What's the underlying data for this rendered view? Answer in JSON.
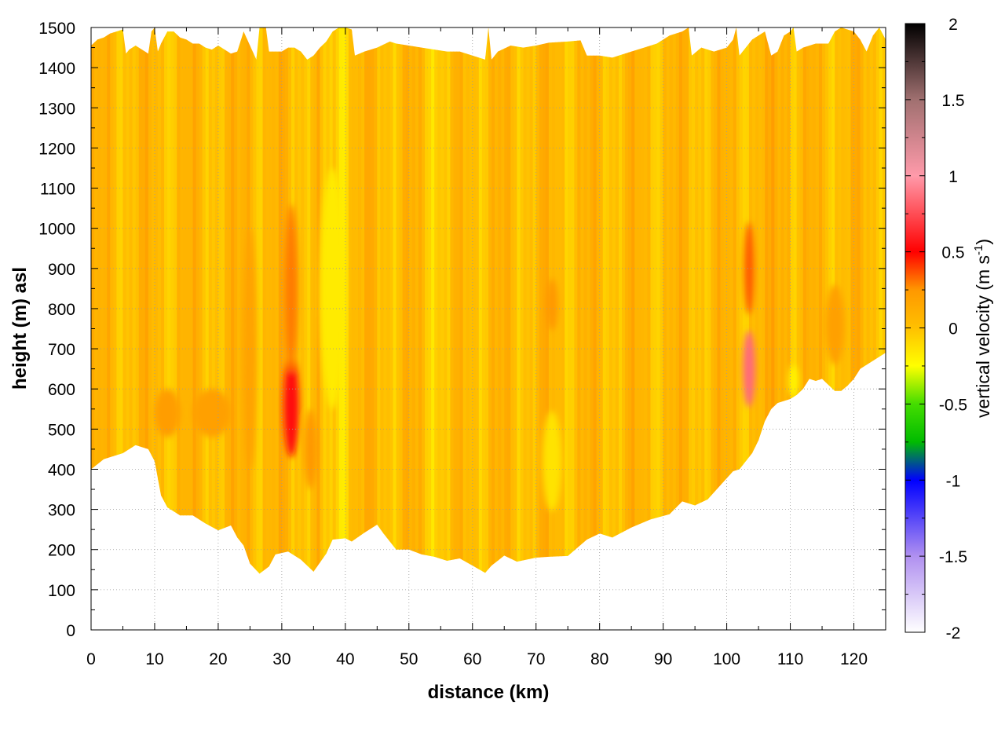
{
  "chart_data": {
    "type": "heatmap",
    "xlabel": "distance (km)",
    "ylabel": "height (m) asl",
    "xlim": [
      0,
      125
    ],
    "ylim": [
      0,
      1500
    ],
    "xticks": [
      0,
      10,
      20,
      30,
      40,
      50,
      60,
      70,
      80,
      90,
      100,
      110,
      120
    ],
    "yticks": [
      0,
      100,
      200,
      300,
      400,
      500,
      600,
      700,
      800,
      900,
      1000,
      1100,
      1200,
      1300,
      1400,
      1500
    ],
    "xtick_labels": [
      "0",
      "10",
      "20",
      "30",
      "40",
      "50",
      "60",
      "70",
      "80",
      "90",
      "100",
      "110",
      "120"
    ],
    "ytick_labels": [
      "0",
      "100",
      "200",
      "300",
      "400",
      "500",
      "600",
      "700",
      "800",
      "900",
      "1000",
      "1100",
      "1200",
      "1300",
      "1400",
      "1500"
    ],
    "grid": true,
    "colorbar": {
      "label_main": "vertical velocity (m s",
      "label_sup": "-1",
      "label_close": ")",
      "range": [
        -2,
        2
      ],
      "ticks": [
        2,
        1.5,
        1,
        0.5,
        0,
        -0.5,
        -1,
        -1.5,
        -2
      ],
      "tick_labels": [
        "2",
        "1.5",
        "1",
        "0.5",
        "0",
        "-0.5",
        "-1",
        "-1.5",
        "-2"
      ],
      "colormap": [
        [
          -2,
          "#ffffff"
        ],
        [
          -1.5,
          "#b090f0"
        ],
        [
          -1,
          "#0000ff"
        ],
        [
          -0.75,
          "#00bb00"
        ],
        [
          -0.5,
          "#44dd00"
        ],
        [
          -0.25,
          "#ffff00"
        ],
        [
          0,
          "#ffc000"
        ],
        [
          0.25,
          "#ff9800"
        ],
        [
          0.5,
          "#ff0000"
        ],
        [
          1,
          "#ff9aaa"
        ],
        [
          1.5,
          "#a07070"
        ],
        [
          2,
          "#000000"
        ]
      ]
    },
    "data_bottom_boundary": [
      [
        0,
        400
      ],
      [
        2,
        425
      ],
      [
        5,
        440
      ],
      [
        7,
        460
      ],
      [
        9,
        450
      ],
      [
        10,
        420
      ],
      [
        11,
        335
      ],
      [
        12,
        305
      ],
      [
        14,
        285
      ],
      [
        16,
        285
      ],
      [
        18,
        265
      ],
      [
        20,
        248
      ],
      [
        22,
        260
      ],
      [
        23,
        230
      ],
      [
        24,
        210
      ],
      [
        25,
        165
      ],
      [
        26.5,
        140
      ],
      [
        28,
        158
      ],
      [
        29,
        188
      ],
      [
        31,
        195
      ],
      [
        33,
        175
      ],
      [
        35,
        145
      ],
      [
        37,
        190
      ],
      [
        38,
        225
      ],
      [
        40,
        228
      ],
      [
        41,
        220
      ],
      [
        43,
        242
      ],
      [
        45,
        262
      ],
      [
        46,
        240
      ],
      [
        48,
        200
      ],
      [
        50,
        200
      ],
      [
        52,
        188
      ],
      [
        54,
        182
      ],
      [
        56,
        172
      ],
      [
        58,
        178
      ],
      [
        60,
        160
      ],
      [
        62,
        142
      ],
      [
        63,
        160
      ],
      [
        65,
        185
      ],
      [
        67,
        170
      ],
      [
        70,
        180
      ],
      [
        72,
        182
      ],
      [
        75,
        184
      ],
      [
        78,
        225
      ],
      [
        80,
        240
      ],
      [
        82,
        230
      ],
      [
        85,
        255
      ],
      [
        88,
        275
      ],
      [
        91,
        288
      ],
      [
        93,
        320
      ],
      [
        95,
        310
      ],
      [
        97,
        325
      ],
      [
        99,
        360
      ],
      [
        101,
        395
      ],
      [
        102,
        400
      ],
      [
        104,
        440
      ],
      [
        105,
        472
      ],
      [
        106,
        520
      ],
      [
        107,
        550
      ],
      [
        108,
        565
      ],
      [
        110,
        575
      ],
      [
        111,
        585
      ],
      [
        112,
        600
      ],
      [
        113,
        625
      ],
      [
        114,
        620
      ],
      [
        115,
        625
      ],
      [
        116,
        610
      ],
      [
        117,
        595
      ],
      [
        118,
        595
      ],
      [
        119,
        608
      ],
      [
        120,
        625
      ],
      [
        121,
        650
      ],
      [
        123,
        670
      ],
      [
        125,
        690
      ]
    ],
    "data_top_boundary": [
      [
        0,
        1455
      ],
      [
        1,
        1470
      ],
      [
        2,
        1475
      ],
      [
        3,
        1485
      ],
      [
        4,
        1490
      ],
      [
        5,
        1495
      ],
      [
        5.5,
        1435
      ],
      [
        6,
        1445
      ],
      [
        7,
        1455
      ],
      [
        8,
        1445
      ],
      [
        9,
        1435
      ],
      [
        9.5,
        1490
      ],
      [
        10,
        1500
      ],
      [
        10.5,
        1440
      ],
      [
        11,
        1460
      ],
      [
        12,
        1490
      ],
      [
        13,
        1490
      ],
      [
        14,
        1475
      ],
      [
        15,
        1470
      ],
      [
        16,
        1460
      ],
      [
        17,
        1460
      ],
      [
        18,
        1450
      ],
      [
        19,
        1445
      ],
      [
        20,
        1455
      ],
      [
        21,
        1445
      ],
      [
        22,
        1435
      ],
      [
        23,
        1440
      ],
      [
        24,
        1490
      ],
      [
        25,
        1455
      ],
      [
        26,
        1420
      ],
      [
        26.5,
        1500
      ],
      [
        27.5,
        1500
      ],
      [
        28,
        1440
      ],
      [
        29,
        1440
      ],
      [
        30,
        1440
      ],
      [
        31,
        1450
      ],
      [
        32,
        1450
      ],
      [
        33,
        1440
      ],
      [
        34,
        1420
      ],
      [
        35,
        1430
      ],
      [
        36,
        1450
      ],
      [
        37,
        1465
      ],
      [
        38,
        1490
      ],
      [
        39,
        1500
      ],
      [
        40,
        1500
      ],
      [
        41,
        1495
      ],
      [
        41.5,
        1430
      ],
      [
        43,
        1440
      ],
      [
        45,
        1450
      ],
      [
        47,
        1465
      ],
      [
        48,
        1460
      ],
      [
        50,
        1455
      ],
      [
        52,
        1450
      ],
      [
        54,
        1445
      ],
      [
        56,
        1440
      ],
      [
        58,
        1440
      ],
      [
        60,
        1430
      ],
      [
        62,
        1420
      ],
      [
        62.5,
        1500
      ],
      [
        63,
        1420
      ],
      [
        64,
        1440
      ],
      [
        66,
        1455
      ],
      [
        68,
        1450
      ],
      [
        70,
        1455
      ],
      [
        72,
        1462
      ],
      [
        75,
        1465
      ],
      [
        77,
        1468
      ],
      [
        78,
        1430
      ],
      [
        80,
        1430
      ],
      [
        82,
        1425
      ],
      [
        85,
        1440
      ],
      [
        87,
        1450
      ],
      [
        89,
        1460
      ],
      [
        91,
        1480
      ],
      [
        93,
        1490
      ],
      [
        94,
        1500
      ],
      [
        94.5,
        1430
      ],
      [
        96,
        1450
      ],
      [
        98,
        1440
      ],
      [
        100,
        1450
      ],
      [
        101,
        1470
      ],
      [
        101.5,
        1500
      ],
      [
        102,
        1430
      ],
      [
        104,
        1470
      ],
      [
        106,
        1490
      ],
      [
        107,
        1430
      ],
      [
        108,
        1440
      ],
      [
        109,
        1480
      ],
      [
        110,
        1490
      ],
      [
        110.5,
        1500
      ],
      [
        111,
        1440
      ],
      [
        112,
        1450
      ],
      [
        114,
        1460
      ],
      [
        116,
        1460
      ],
      [
        117,
        1490
      ],
      [
        118,
        1500
      ],
      [
        120,
        1490
      ],
      [
        121,
        1470
      ],
      [
        122,
        1440
      ],
      [
        123,
        1480
      ],
      [
        124,
        1500
      ],
      [
        125,
        1470
      ]
    ],
    "velocity_features": [
      {
        "x": 31.5,
        "y": 560,
        "width_km": 1.2,
        "height_m": 260,
        "w": 0.55
      },
      {
        "x": 31.5,
        "y": 850,
        "width_km": 1.0,
        "height_m": 420,
        "w": 0.3
      },
      {
        "x": 34.5,
        "y": 450,
        "width_km": 1.0,
        "height_m": 200,
        "w": 0.25
      },
      {
        "x": 103.5,
        "y": 650,
        "width_km": 1.0,
        "height_m": 190,
        "w": 0.85
      },
      {
        "x": 103.5,
        "y": 900,
        "width_km": 0.8,
        "height_m": 230,
        "w": 0.35
      },
      {
        "x": 72.5,
        "y": 810,
        "width_km": 0.9,
        "height_m": 130,
        "w": 0.25
      },
      {
        "x": 12,
        "y": 540,
        "width_km": 2.0,
        "height_m": 120,
        "w": 0.22
      },
      {
        "x": 19,
        "y": 540,
        "width_km": 3.0,
        "height_m": 120,
        "w": 0.2
      },
      {
        "x": 25,
        "y": 700,
        "width_km": 1.0,
        "height_m": 600,
        "w": 0.18
      },
      {
        "x": 38,
        "y": 850,
        "width_km": 2.0,
        "height_m": 600,
        "w": -0.17
      },
      {
        "x": 72.5,
        "y": 420,
        "width_km": 1.5,
        "height_m": 250,
        "w": -0.14
      },
      {
        "x": 110.5,
        "y": 620,
        "width_km": 0.8,
        "height_m": 80,
        "w": -0.2
      },
      {
        "x": 117,
        "y": 760,
        "width_km": 1.5,
        "height_m": 200,
        "w": 0.2
      }
    ]
  }
}
